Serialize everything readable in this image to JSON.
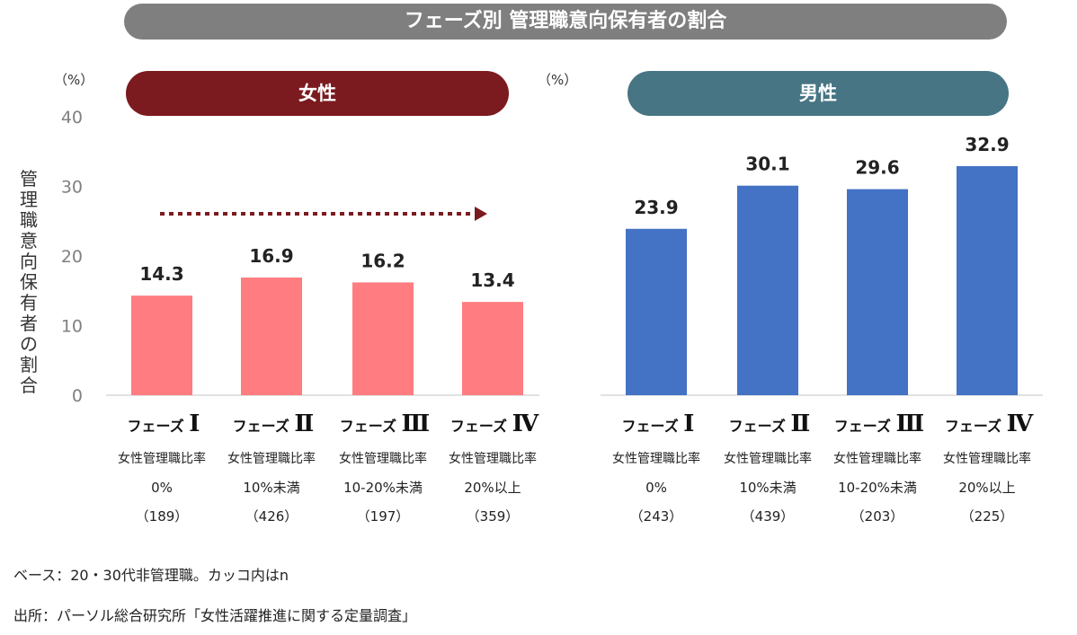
{
  "title": "フェーズ別 管理職意向保有者の割合",
  "y_axis_label": "管理職意向保有者の割合",
  "panels_meta": {
    "female": {
      "header": "女性",
      "unit": "（%）"
    },
    "male": {
      "header": "男性",
      "unit": "（%）"
    }
  },
  "chart_data": [
    {
      "type": "bar",
      "title": "女性",
      "categories": [
        "フェーズ Ⅰ",
        "フェーズ Ⅱ",
        "フェーズ Ⅲ",
        "フェーズ Ⅳ"
      ],
      "category_roman": [
        "Ⅰ",
        "Ⅱ",
        "Ⅲ",
        "Ⅳ"
      ],
      "category_prefix": "フェーズ",
      "category_sub": [
        "女性管理職比率",
        "女性管理職比率",
        "女性管理職比率",
        "女性管理職比率"
      ],
      "category_range": [
        "0%",
        "10%未満",
        "10-20%未満",
        "20%以上"
      ],
      "category_n": [
        "（189）",
        "（426）",
        "（197）",
        "（359）"
      ],
      "values": [
        14.3,
        16.9,
        16.2,
        13.4
      ],
      "value_labels": [
        "14.3",
        "16.9",
        "16.2",
        "13.4"
      ],
      "ylabel": "管理職意向保有者の割合",
      "unit": "（%）",
      "ylim": [
        0,
        40
      ],
      "yticks": [
        0,
        10,
        20,
        30,
        40
      ],
      "ytick_labels": [
        "0",
        "10",
        "20",
        "30",
        "40"
      ],
      "color": "#ff7c80",
      "trend_arrow": true,
      "trend_color": "#7b1a1f",
      "grid": false
    },
    {
      "type": "bar",
      "title": "男性",
      "categories": [
        "フェーズ Ⅰ",
        "フェーズ Ⅱ",
        "フェーズ Ⅲ",
        "フェーズ Ⅳ"
      ],
      "category_roman": [
        "Ⅰ",
        "Ⅱ",
        "Ⅲ",
        "Ⅳ"
      ],
      "category_prefix": "フェーズ",
      "category_sub": [
        "女性管理職比率",
        "女性管理職比率",
        "女性管理職比率",
        "女性管理職比率"
      ],
      "category_range": [
        "0%",
        "10%未満",
        "10-20%未満",
        "20%以上"
      ],
      "category_n": [
        "（243）",
        "（439）",
        "（203）",
        "（225）"
      ],
      "values": [
        23.9,
        30.1,
        29.6,
        32.9
      ],
      "value_labels": [
        "23.9",
        "30.1",
        "29.6",
        "32.9"
      ],
      "unit": "（%）",
      "ylim": [
        0,
        40
      ],
      "color": "#4472c4",
      "grid": false
    }
  ],
  "footnotes": {
    "base": "ベース：20・30代非管理職。カッコ内はn",
    "source": "出所：パーソル総合研究所「女性活躍推進に関する定量調査」"
  }
}
